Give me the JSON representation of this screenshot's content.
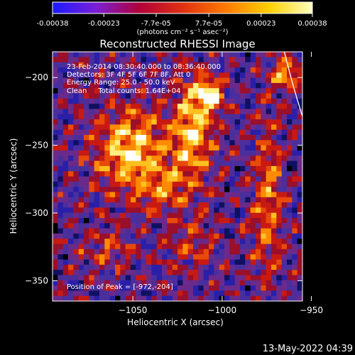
{
  "colorbar": {
    "tick_labels": [
      "-0.00038",
      "-0.00023",
      "-7.7e-05",
      "7.7e-05",
      "0.00023",
      "0.00038"
    ],
    "tick_values": [
      -0.00038,
      -0.00023,
      -7.7e-05,
      7.7e-05,
      0.00023,
      0.00038
    ],
    "range": [
      -0.00038,
      0.00038
    ],
    "units_label": "(photons cm⁻² s⁻¹ asec⁻²)",
    "colors": [
      "#1a1aff",
      "#7a1fd6",
      "#b0003a",
      "#e03010",
      "#ff7a00",
      "#ffd000",
      "#ffffc0"
    ]
  },
  "chart_data": {
    "type": "heatmap",
    "title": "Reconstructed RHESSI Image",
    "xlabel": "Heliocentric X (arcsec)",
    "ylabel": "Heliocentric Y (arcsec)",
    "xlim": [
      -1095,
      -955
    ],
    "ylim": [
      -365,
      -181
    ],
    "x_ticks": [
      -1050,
      -1000,
      -950
    ],
    "y_ticks": [
      -200,
      -250,
      -300,
      -350
    ],
    "x_tick_labels": [
      "−1050",
      "−1000",
      "−950"
    ],
    "y_tick_labels": [
      "−200",
      "−250",
      "−300",
      "−350"
    ],
    "limb": true,
    "peak": [
      -972,
      -204
    ],
    "annotations": [
      "23-Feb-2014 08:30:40.000 to 08:36:40.000",
      "Detectors: 3F 4F 5F 6F 7F 8F, Att 0",
      "Energy Range: 25.0 - 50.0 keV",
      "Clean     Total counts: 1.64E+04"
    ],
    "peak_label": "Position of Peak = [-972,-204]"
  },
  "footer": {
    "timestamp": "13-May-2022 04:39"
  }
}
